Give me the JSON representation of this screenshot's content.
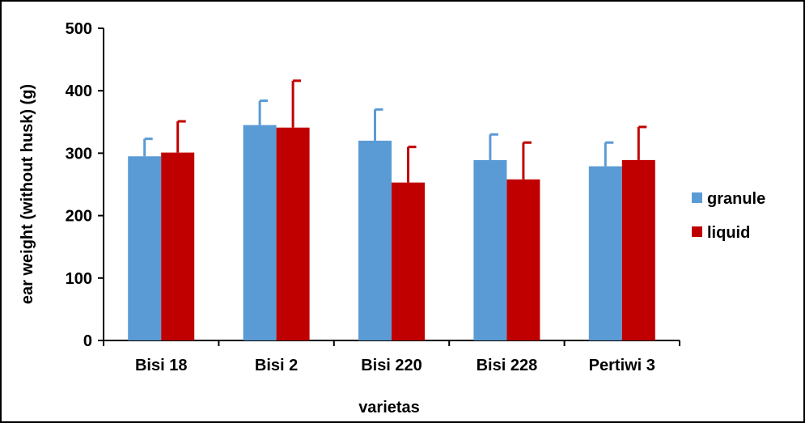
{
  "chart_data": {
    "type": "bar",
    "title": "",
    "xlabel": "varietas",
    "ylabel": "ear weight (without husk) (g)",
    "ylim": [
      0,
      500
    ],
    "yticks": [
      0,
      100,
      200,
      300,
      400,
      500
    ],
    "categories": [
      "Bisi 18",
      "Bisi 2",
      "Bisi 220",
      "Bisi 228",
      "Pertiwi 3"
    ],
    "series": [
      {
        "name": "granule",
        "color": "#5B9BD5",
        "values": [
          295,
          345,
          320,
          289,
          279
        ],
        "error": [
          28,
          39,
          50,
          41,
          38
        ]
      },
      {
        "name": "liquid",
        "color": "#C00000",
        "values": [
          301,
          341,
          253,
          258,
          289
        ],
        "error": [
          50,
          75,
          57,
          59,
          53
        ]
      }
    ],
    "legend_position": "right",
    "grid": false
  }
}
